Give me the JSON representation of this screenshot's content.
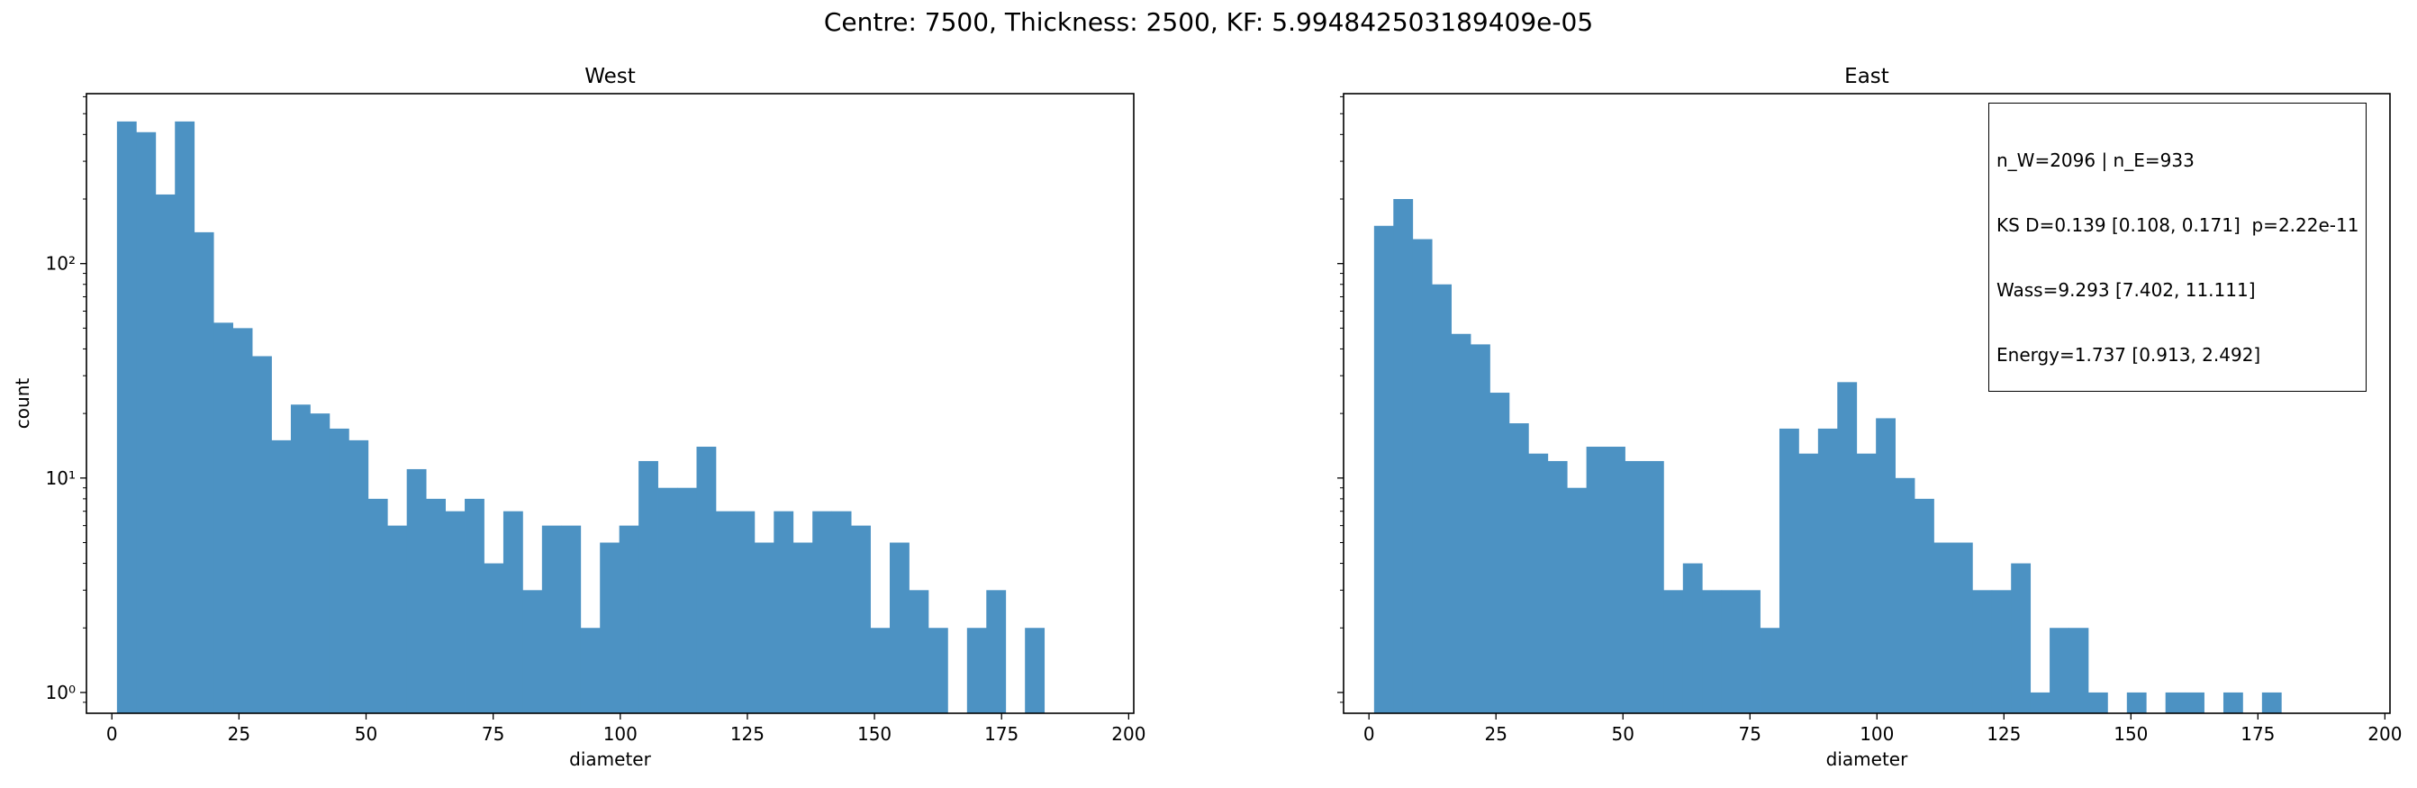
{
  "figure_title": "Centre: 7500, Thickness: 2500, KF: 5.994842503189409e-05",
  "colors": {
    "bar": "#4c92c3",
    "axes": "#000000"
  },
  "stats_box": {
    "lines": [
      "n_W=2096 | n_E=933",
      "KS D=0.139 [0.108, 0.171]  p=2.22e-11",
      "Wass=9.293 [7.402, 11.111]",
      "Energy=1.737 [0.913, 2.492]"
    ]
  },
  "chart_data": [
    {
      "type": "bar",
      "title": "West",
      "xlabel": "diameter",
      "ylabel": "count",
      "yscale": "log",
      "xlim": [
        -5,
        201
      ],
      "ylim": [
        0.8,
        620
      ],
      "xticks": [
        0,
        25,
        50,
        75,
        100,
        125,
        150,
        175,
        200
      ],
      "yticks": [
        {
          "value": 1,
          "label": "10⁰"
        },
        {
          "value": 10,
          "label": "10¹"
        },
        {
          "value": 100,
          "label": "10²"
        }
      ],
      "bin_start": 1,
      "bin_width": 3.8,
      "values": [
        460,
        410,
        210,
        460,
        140,
        53,
        50,
        37,
        15,
        22,
        20,
        17,
        15,
        8,
        6,
        11,
        8,
        7,
        8,
        4,
        7,
        3,
        6,
        6,
        2,
        5,
        6,
        12,
        9,
        9,
        14,
        7,
        7,
        5,
        7,
        5,
        7,
        7,
        6,
        2,
        5,
        3,
        2,
        0,
        2,
        3,
        0,
        2
      ]
    },
    {
      "type": "bar",
      "title": "East",
      "xlabel": "diameter",
      "ylabel": "",
      "yscale": "log",
      "xlim": [
        -5,
        201
      ],
      "ylim": [
        0.8,
        620
      ],
      "xticks": [
        0,
        25,
        50,
        75,
        100,
        125,
        150,
        175,
        200
      ],
      "yticks": [
        {
          "value": 1,
          "label": ""
        },
        {
          "value": 10,
          "label": ""
        },
        {
          "value": 100,
          "label": ""
        }
      ],
      "bin_start": 1,
      "bin_width": 3.8,
      "values": [
        150,
        200,
        130,
        80,
        47,
        42,
        25,
        18,
        13,
        12,
        9,
        14,
        14,
        12,
        12,
        3,
        4,
        3,
        3,
        3,
        2,
        17,
        13,
        17,
        28,
        13,
        19,
        10,
        8,
        5,
        5,
        3,
        3,
        4,
        1,
        2,
        2,
        1,
        0,
        1,
        0,
        1,
        1,
        0,
        1,
        0,
        1
      ]
    }
  ]
}
